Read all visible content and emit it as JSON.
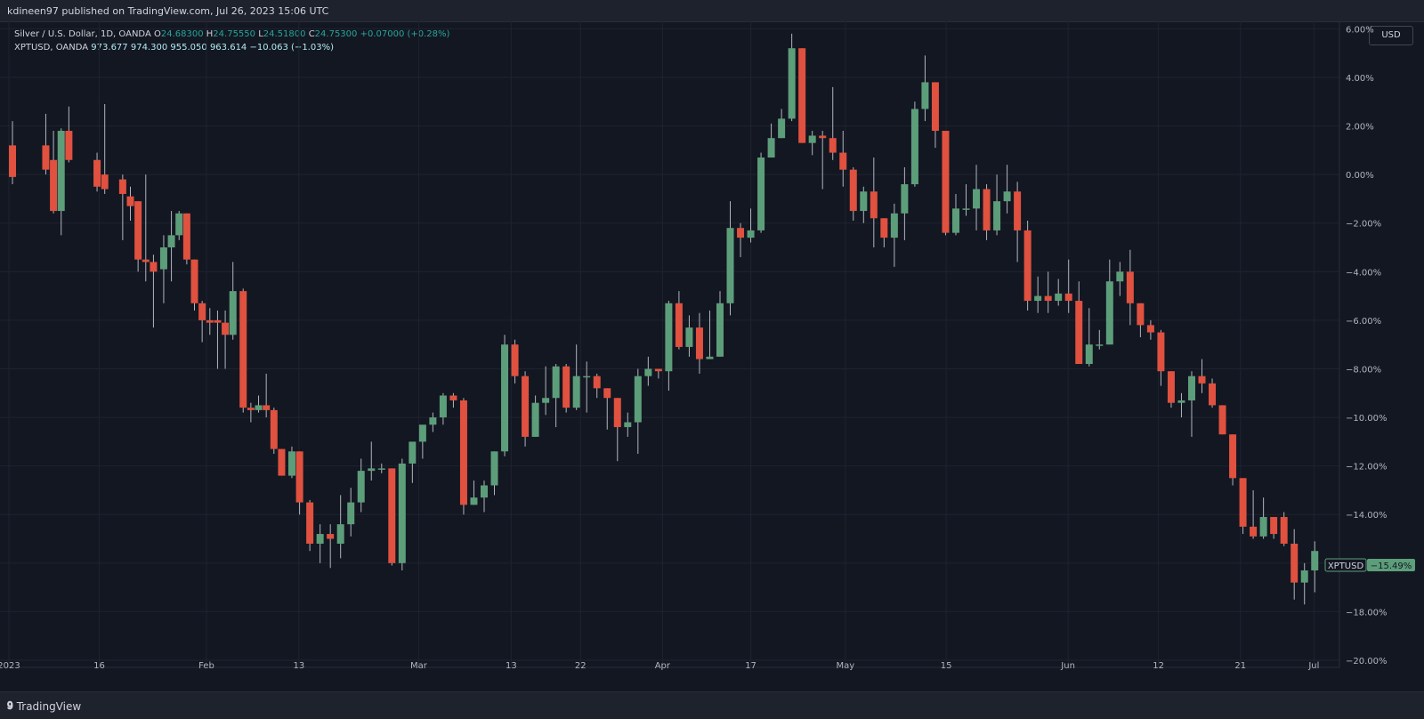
{
  "header": {
    "published": "kdineen97 published on TradingView.com, Jul 26, 2023 15:06 UTC"
  },
  "legend": {
    "row1": {
      "symbol": "Silver / U.S. Dollar, 1D, OANDA",
      "o_label": "O",
      "o": "24.68300",
      "h_label": "H",
      "h": "24.75550",
      "l_label": "L",
      "l": "24.51800",
      "c_label": "C",
      "c": "24.75300",
      "change": "+0.07000 (+0.28%)"
    },
    "row2": {
      "symbol": "XPTUSD, OANDA",
      "o": "973.677",
      "h": "974.300",
      "l": "955.050",
      "c": "963.614",
      "change": "−10.063 (−1.03%)"
    }
  },
  "currency_button": "USD",
  "footer": {
    "brand": "TradingView"
  },
  "colors": {
    "up": "#5d9e7a",
    "down": "#e0513f",
    "background": "#131722",
    "grid": "#1f2330"
  },
  "chart_data": {
    "type": "candlestick",
    "y_unit": "percent",
    "ylim": [
      -20,
      6.6
    ],
    "y_ticks": [
      "6.00%",
      "4.00%",
      "2.00%",
      "0.00%",
      "−2.00%",
      "−4.00%",
      "−6.00%",
      "−8.00%",
      "−10.00%",
      "−12.00%",
      "−14.00%",
      "−16.00%",
      "−18.00%",
      "−20.00%"
    ],
    "x_ticks": [
      "2023",
      "16",
      "Feb",
      "13",
      "Mar",
      "13",
      "22",
      "Apr",
      "17",
      "May",
      "15",
      "Jun",
      "12",
      "21",
      "Jul"
    ],
    "series_label": "XPTUSD",
    "last_value_label": "−15.49%",
    "candles": [
      [
        0.0,
        1.2,
        -0.1,
        2.2,
        -0.4
      ],
      [
        1.3,
        1.2,
        0.2,
        2.5,
        0.0
      ],
      [
        1.6,
        0.6,
        -1.5,
        1.8,
        -1.6
      ],
      [
        1.9,
        -1.5,
        1.8,
        1.9,
        -2.5
      ],
      [
        2.2,
        1.8,
        0.6,
        2.8,
        0.5
      ],
      [
        3.3,
        0.6,
        -0.5,
        0.9,
        -0.7
      ],
      [
        3.6,
        0.0,
        -0.6,
        2.9,
        -0.8
      ],
      [
        4.3,
        -0.2,
        -0.8,
        0.0,
        -2.7
      ],
      [
        4.6,
        -0.9,
        -1.3,
        -0.5,
        -1.9
      ],
      [
        4.9,
        -1.1,
        -3.5,
        -1.1,
        -4.0
      ],
      [
        5.2,
        -3.5,
        -3.6,
        0.0,
        -4.4
      ],
      [
        5.5,
        -3.6,
        -4.0,
        -3.3,
        -6.3
      ],
      [
        5.9,
        -3.9,
        -3.0,
        -2.5,
        -5.3
      ],
      [
        6.2,
        -3.0,
        -2.5,
        -1.5,
        -4.4
      ],
      [
        6.5,
        -2.5,
        -1.6,
        -1.5,
        -2.7
      ],
      [
        6.8,
        -1.6,
        -3.5,
        -1.6,
        -3.7
      ],
      [
        7.1,
        -3.5,
        -5.3,
        -3.5,
        -5.6
      ],
      [
        7.4,
        -5.3,
        -6.0,
        -5.2,
        -6.9
      ],
      [
        7.7,
        -6.0,
        -6.1,
        -5.5,
        -6.6
      ],
      [
        8.0,
        -6.0,
        -6.1,
        -5.6,
        -8.0
      ],
      [
        8.3,
        -6.1,
        -6.6,
        -5.6,
        -8.0
      ],
      [
        8.6,
        -6.6,
        -4.8,
        -3.6,
        -6.8
      ],
      [
        9.0,
        -4.8,
        -9.6,
        -4.7,
        -9.8
      ],
      [
        9.3,
        -9.6,
        -9.7,
        -9.4,
        -10.2
      ],
      [
        9.6,
        -9.7,
        -9.5,
        -9.1,
        -9.8
      ],
      [
        9.9,
        -9.5,
        -9.7,
        -8.2,
        -10.0
      ],
      [
        10.2,
        -9.7,
        -11.3,
        -9.6,
        -11.5
      ],
      [
        10.5,
        -11.3,
        -12.4,
        -11.3,
        -12.4
      ],
      [
        10.9,
        -12.4,
        -11.4,
        -11.2,
        -12.5
      ],
      [
        11.2,
        -11.4,
        -13.5,
        -11.4,
        -14.0
      ],
      [
        11.6,
        -13.5,
        -15.2,
        -13.4,
        -15.5
      ],
      [
        12.0,
        -15.2,
        -14.8,
        -14.4,
        -16.0
      ],
      [
        12.4,
        -14.8,
        -15.0,
        -14.4,
        -16.2
      ],
      [
        12.8,
        -15.2,
        -14.4,
        -13.2,
        -15.8
      ],
      [
        13.2,
        -14.4,
        -13.5,
        -12.9,
        -14.9
      ],
      [
        13.6,
        -13.5,
        -12.2,
        -11.7,
        -13.9
      ],
      [
        14.0,
        -12.2,
        -12.1,
        -11.0,
        -12.6
      ],
      [
        14.4,
        -12.1,
        -12.1,
        -11.9,
        -12.3
      ],
      [
        14.8,
        -12.1,
        -16.0,
        -12.1,
        -16.1
      ],
      [
        15.2,
        -16.0,
        -11.9,
        -11.7,
        -16.3
      ],
      [
        15.6,
        -11.9,
        -11.0,
        -11.1,
        -12.7
      ],
      [
        16.0,
        -11.0,
        -10.3,
        -10.5,
        -11.7
      ],
      [
        16.4,
        -10.3,
        -10.0,
        -9.8,
        -10.6
      ],
      [
        16.8,
        -10.0,
        -9.1,
        -9.0,
        -10.3
      ],
      [
        17.2,
        -9.1,
        -9.3,
        -9.0,
        -9.6
      ],
      [
        17.6,
        -9.3,
        -13.6,
        -9.2,
        -14.0
      ],
      [
        18.0,
        -13.6,
        -13.3,
        -12.6,
        -13.6
      ],
      [
        18.4,
        -13.3,
        -12.8,
        -12.6,
        -13.9
      ],
      [
        18.8,
        -12.8,
        -11.4,
        -11.4,
        -13.2
      ],
      [
        19.2,
        -11.4,
        -7.0,
        -6.6,
        -11.6
      ],
      [
        19.6,
        -7.0,
        -8.3,
        -6.8,
        -8.6
      ],
      [
        20.0,
        -8.3,
        -10.8,
        -8.1,
        -11.2
      ],
      [
        20.4,
        -10.8,
        -9.4,
        -9.1,
        -10.8
      ],
      [
        20.8,
        -9.4,
        -9.2,
        -7.9,
        -9.9
      ],
      [
        21.2,
        -9.2,
        -7.9,
        -7.8,
        -10.4
      ],
      [
        21.6,
        -7.9,
        -9.6,
        -7.8,
        -9.8
      ],
      [
        22.0,
        -9.6,
        -8.3,
        -7.0,
        -9.7
      ],
      [
        22.4,
        -8.3,
        -8.3,
        -7.7,
        -9.8
      ],
      [
        22.8,
        -8.3,
        -8.8,
        -8.2,
        -9.2
      ],
      [
        23.2,
        -8.8,
        -9.2,
        -8.8,
        -10.5
      ],
      [
        23.6,
        -9.2,
        -10.4,
        -9.2,
        -11.8
      ],
      [
        24.0,
        -10.4,
        -10.2,
        -9.8,
        -10.8
      ],
      [
        24.4,
        -10.2,
        -8.3,
        -8.0,
        -11.5
      ],
      [
        24.8,
        -8.3,
        -8.0,
        -7.5,
        -8.7
      ],
      [
        25.2,
        -8.0,
        -8.1,
        -8.0,
        -8.4
      ],
      [
        25.6,
        -8.1,
        -5.3,
        -5.2,
        -8.9
      ],
      [
        26.0,
        -5.3,
        -7.1,
        -4.8,
        -7.2
      ],
      [
        26.4,
        -7.1,
        -6.3,
        -5.8,
        -7.5
      ],
      [
        26.8,
        -6.3,
        -7.6,
        -5.7,
        -8.2
      ],
      [
        27.2,
        -7.6,
        -7.5,
        -5.6,
        -7.6
      ],
      [
        27.6,
        -7.5,
        -5.3,
        -4.8,
        -7.5
      ],
      [
        28.0,
        -5.3,
        -2.2,
        -1.1,
        -5.8
      ],
      [
        28.4,
        -2.2,
        -2.6,
        -2.0,
        -3.4
      ],
      [
        28.8,
        -2.6,
        -2.3,
        -1.4,
        -2.8
      ],
      [
        29.2,
        -2.3,
        0.7,
        0.9,
        -2.4
      ],
      [
        29.6,
        0.7,
        1.5,
        2.1,
        0.7
      ],
      [
        30.0,
        1.5,
        2.3,
        2.7,
        1.5
      ],
      [
        30.4,
        2.3,
        5.2,
        5.8,
        2.2
      ],
      [
        30.8,
        5.2,
        1.3,
        5.2,
        1.3
      ],
      [
        31.2,
        1.3,
        1.6,
        1.8,
        0.8
      ],
      [
        31.6,
        1.6,
        1.5,
        1.8,
        -0.6
      ],
      [
        32.0,
        1.5,
        0.9,
        3.6,
        0.6
      ],
      [
        32.4,
        0.9,
        0.2,
        1.8,
        -0.5
      ],
      [
        32.8,
        0.2,
        -1.5,
        0.3,
        -1.9
      ],
      [
        33.2,
        -1.5,
        -0.7,
        -0.5,
        -2.0
      ],
      [
        33.6,
        -0.7,
        -1.8,
        0.7,
        -3.0
      ],
      [
        34.0,
        -1.8,
        -2.6,
        -1.8,
        -3.0
      ],
      [
        34.4,
        -2.6,
        -1.6,
        -1.2,
        -3.8
      ],
      [
        34.8,
        -1.6,
        -0.4,
        0.3,
        -2.7
      ],
      [
        35.2,
        -0.4,
        2.7,
        3.0,
        -0.5
      ],
      [
        35.6,
        2.7,
        3.8,
        4.9,
        2.2
      ],
      [
        36.0,
        3.8,
        1.8,
        3.8,
        1.1
      ],
      [
        36.4,
        1.8,
        -2.4,
        1.8,
        -2.5
      ],
      [
        36.8,
        -2.4,
        -1.4,
        -0.8,
        -2.5
      ],
      [
        37.2,
        -1.4,
        -1.4,
        -0.4,
        -1.7
      ],
      [
        37.6,
        -1.4,
        -0.6,
        0.4,
        -2.3
      ],
      [
        38.0,
        -0.6,
        -2.3,
        -0.4,
        -2.7
      ],
      [
        38.4,
        -2.3,
        -1.1,
        0.0,
        -2.5
      ],
      [
        38.8,
        -1.1,
        -0.7,
        0.4,
        -1.6
      ],
      [
        39.2,
        -0.7,
        -2.3,
        -0.3,
        -3.6
      ],
      [
        39.6,
        -2.3,
        -5.2,
        -1.9,
        -5.6
      ],
      [
        40.0,
        -5.2,
        -5.0,
        -4.2,
        -5.7
      ],
      [
        40.4,
        -5.0,
        -5.2,
        -4.0,
        -5.7
      ],
      [
        40.8,
        -5.2,
        -4.9,
        -4.3,
        -5.4
      ],
      [
        41.2,
        -4.9,
        -5.2,
        -3.5,
        -5.7
      ],
      [
        41.6,
        -5.2,
        -7.8,
        -4.4,
        -7.8
      ],
      [
        42.0,
        -7.8,
        -7.0,
        -5.5,
        -7.9
      ],
      [
        42.4,
        -7.0,
        -7.0,
        -6.4,
        -7.2
      ],
      [
        42.8,
        -7.0,
        -4.4,
        -3.5,
        -7.0
      ],
      [
        43.2,
        -4.4,
        -4.0,
        -3.6,
        -5.0
      ],
      [
        43.6,
        -4.0,
        -5.3,
        -3.1,
        -6.2
      ],
      [
        44.0,
        -5.3,
        -6.2,
        -5.3,
        -6.7
      ],
      [
        44.4,
        -6.2,
        -6.5,
        -6.0,
        -6.8
      ],
      [
        44.8,
        -6.5,
        -8.1,
        -6.4,
        -8.7
      ],
      [
        45.2,
        -8.1,
        -9.4,
        -8.1,
        -9.6
      ],
      [
        45.6,
        -9.4,
        -9.3,
        -9.0,
        -10.0
      ],
      [
        46.0,
        -9.3,
        -8.3,
        -8.1,
        -10.8
      ],
      [
        46.4,
        -8.3,
        -8.6,
        -7.6,
        -9.0
      ],
      [
        46.8,
        -8.6,
        -9.5,
        -8.4,
        -9.6
      ],
      [
        47.2,
        -9.5,
        -10.7,
        -9.5,
        -10.7
      ],
      [
        47.6,
        -10.7,
        -12.5,
        -10.7,
        -12.8
      ],
      [
        48.0,
        -12.5,
        -14.5,
        -12.5,
        -14.8
      ],
      [
        48.4,
        -14.5,
        -14.9,
        -13.0,
        -15.0
      ],
      [
        48.8,
        -14.9,
        -14.1,
        -13.3,
        -15.0
      ],
      [
        49.2,
        -14.1,
        -14.8,
        -14.2,
        -15.0
      ],
      [
        49.6,
        -14.1,
        -15.2,
        -13.9,
        -15.3
      ],
      [
        50.0,
        -15.2,
        -16.8,
        -14.6,
        -17.5
      ],
      [
        50.4,
        -16.8,
        -16.3,
        -16.0,
        -17.7
      ],
      [
        50.8,
        -16.3,
        -15.5,
        -15.1,
        -17.2
      ]
    ]
  }
}
